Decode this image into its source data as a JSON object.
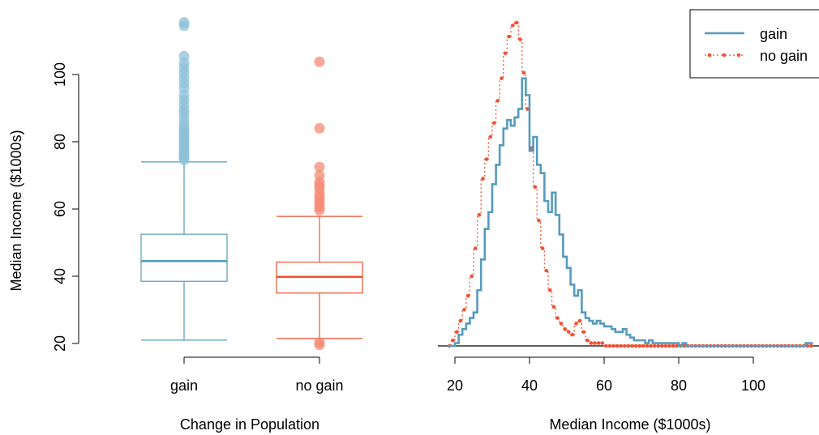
{
  "colors": {
    "gain": "#569bbd",
    "no_gain": "#f05133",
    "gain_light": "#8ec0d8",
    "no_gain_light": "#f58b74"
  },
  "chart_data": [
    {
      "type": "box",
      "xlabel": "Change in Population",
      "ylabel": "Median Income ($1000s)",
      "ylim": [
        20,
        116
      ],
      "yticks": [
        20,
        40,
        60,
        80,
        100
      ],
      "categories": [
        "gain",
        "no gain"
      ],
      "boxes": [
        {
          "name": "gain",
          "whisker_low": 21,
          "q1": 38.5,
          "median": 44.5,
          "q3": 52.5,
          "whisker_high": 74,
          "outliers": [
            74.6,
            75.2,
            75.8,
            76.5,
            77.2,
            78,
            78.8,
            79.5,
            80.3,
            81,
            81.8,
            82.6,
            83.4,
            84.3,
            85.5,
            87,
            88.5,
            89.5,
            91,
            92.5,
            94,
            96,
            97.5,
            99,
            100.5,
            102,
            103.5,
            105.5,
            114.5,
            115.5
          ]
        },
        {
          "name": "no gain",
          "whisker_low": 21.5,
          "q1": 35,
          "median": 39.8,
          "q3": 44.2,
          "whisker_high": 57.8,
          "outliers": [
            19.6,
            20.3,
            59.6,
            60.5,
            61.5,
            62.5,
            63.5,
            64.5,
            66,
            67,
            68,
            70,
            72.5,
            84,
            103.8
          ]
        }
      ]
    },
    {
      "type": "step",
      "xlabel": "Median Income ($1000s)",
      "ylabel": "",
      "xlim": [
        17,
        116
      ],
      "xticks": [
        20,
        40,
        60,
        80,
        100
      ],
      "legend": {
        "placement": "top-right",
        "entries": [
          "gain",
          "no gain"
        ]
      },
      "bin_width": 1,
      "bin_start": 18,
      "series": [
        {
          "name": "gain",
          "density": [
            0.0,
            0.0,
            0.001,
            0.004,
            0.006,
            0.008,
            0.01,
            0.012,
            0.02,
            0.031,
            0.042,
            0.048,
            0.058,
            0.065,
            0.072,
            0.078,
            0.081,
            0.079,
            0.082,
            0.085,
            0.096,
            0.09,
            0.07,
            0.075,
            0.065,
            0.062,
            0.052,
            0.048,
            0.055,
            0.047,
            0.04,
            0.032,
            0.028,
            0.022,
            0.018,
            0.02,
            0.012,
            0.01,
            0.009,
            0.008,
            0.009,
            0.008,
            0.007,
            0.007,
            0.006,
            0.005,
            0.005,
            0.006,
            0.004,
            0.003,
            0.002,
            0.002,
            0.002,
            0.001,
            0.002,
            0.001,
            0.001,
            0.001,
            0.001,
            0.001,
            0.001,
            0.001,
            0.0,
            0.001,
            0.0,
            0.0,
            0.0,
            0.0,
            0.0,
            0.0,
            0.0,
            0.0,
            0.0,
            0.0,
            0.0,
            0.0,
            0.0,
            0.0,
            0.0,
            0.0,
            0.0,
            0.0,
            0.0,
            0.0,
            0.0,
            0.0,
            0.0,
            0.0,
            0.0,
            0.0,
            0.0,
            0.0,
            0.0,
            0.0,
            0.0,
            0.0,
            0.001,
            0.001
          ]
        },
        {
          "name": "no gain",
          "density": [
            0.0,
            0.002,
            0.005,
            0.009,
            0.013,
            0.018,
            0.025,
            0.035,
            0.047,
            0.06,
            0.067,
            0.075,
            0.08,
            0.088,
            0.096,
            0.105,
            0.111,
            0.115,
            0.116,
            0.11,
            0.098,
            0.085,
            0.071,
            0.057,
            0.045,
            0.035,
            0.027,
            0.02,
            0.014,
            0.01,
            0.008,
            0.006,
            0.005,
            0.004,
            0.008,
            0.009,
            0.005,
            0.002,
            0.001,
            0.001,
            0.001,
            0.001,
            0.0,
            0.0,
            0.0,
            0.0,
            0.0,
            0.0,
            0.0,
            0.0,
            0.0,
            0.0,
            0.0,
            0.0,
            0.0,
            0.0,
            0.0,
            0.0,
            0.0,
            0.0,
            0.0,
            0.0,
            0.0,
            0.0,
            0.0,
            0.0,
            0.0,
            0.0,
            0.0,
            0.0,
            0.0,
            0.0,
            0.0,
            0.0,
            0.0,
            0.0,
            0.0,
            0.0,
            0.0,
            0.0,
            0.0,
            0.0,
            0.0,
            0.0,
            0.0,
            0.0,
            0.0,
            0.0,
            0.0,
            0.0,
            0.0,
            0.0,
            0.0,
            0.0,
            0.0,
            0.0,
            0.0,
            0.0
          ]
        }
      ]
    }
  ]
}
